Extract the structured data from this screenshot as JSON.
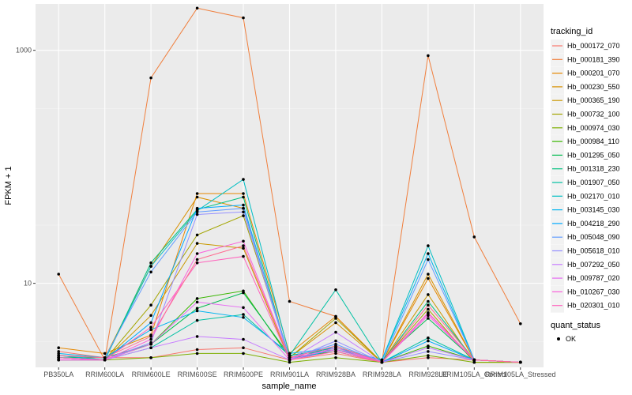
{
  "chart_data": {
    "type": "line",
    "xlabel": "sample_name",
    "ylabel": "FPKM + 1",
    "y_scale": "log10",
    "ylim": [
      1.9,
      2500
    ],
    "y_ticks": [
      10,
      1000
    ],
    "grid": true,
    "legend_position": "right",
    "categories": [
      "PB350LA",
      "RRIM600LA",
      "RRIM600LE",
      "RRIM600SE",
      "RRIM600PE",
      "RRIM901LA",
      "RRIM928BA",
      "RRIM928LA",
      "RRIM928LE",
      "RRIM105LA_Control",
      "RRIM105LA_Stressed"
    ],
    "color_legend": {
      "title": "tracking_id"
    },
    "point_legend": {
      "title": "quant_status",
      "label": "OK"
    },
    "series": [
      {
        "name": "Hb_000172_070",
        "color": "#F8766D",
        "values": [
          2.6,
          2.3,
          2.3,
          2.7,
          2.8,
          2.2,
          2.5,
          2.1,
          2.3,
          2.2,
          2.1
        ]
      },
      {
        "name": "Hb_000181_390",
        "color": "#F07F3D",
        "values": [
          12,
          2.2,
          580,
          2300,
          1900,
          7,
          5.2,
          2.1,
          900,
          25,
          4.5
        ]
      },
      {
        "name": "Hb_000201_070",
        "color": "#E58700",
        "values": [
          2.8,
          2.5,
          3.6,
          59,
          59,
          2.5,
          5.2,
          2.1,
          11,
          2.2,
          2.1
        ]
      },
      {
        "name": "Hb_000230_550",
        "color": "#D89000",
        "values": [
          2.4,
          2.3,
          14,
          55,
          44,
          2.3,
          4.6,
          2.1,
          12,
          2.2,
          2.1
        ]
      },
      {
        "name": "Hb_000365_190",
        "color": "#C99800",
        "values": [
          2.3,
          2.2,
          5.3,
          22,
          20,
          2.2,
          2.8,
          2.1,
          8,
          2.1,
          2.1
        ]
      },
      {
        "name": "Hb_000732_100",
        "color": "#A3A500",
        "values": [
          2.2,
          2.2,
          6.5,
          26,
          38,
          2.3,
          5,
          2.1,
          6,
          2.1,
          2.1
        ]
      },
      {
        "name": "Hb_000974_030",
        "color": "#7CAE00",
        "values": [
          2.2,
          2.2,
          2.3,
          2.5,
          2.5,
          2.1,
          2.3,
          2.1,
          2.4,
          2.1,
          2.1
        ]
      },
      {
        "name": "Hb_000984_110",
        "color": "#39B600",
        "values": [
          2.3,
          2.2,
          3,
          7.4,
          8.6,
          2.3,
          2.6,
          2.1,
          2.9,
          2.2,
          2.1
        ]
      },
      {
        "name": "Hb_001295_050",
        "color": "#00BB4E",
        "values": [
          2.3,
          2.3,
          3,
          6.1,
          8.3,
          2.4,
          2.8,
          2.2,
          5,
          2.2,
          2.1
        ]
      },
      {
        "name": "Hb_001318_230",
        "color": "#00BF7D",
        "values": [
          2.2,
          2.2,
          15,
          43,
          55,
          2.2,
          2.9,
          2.1,
          7,
          2.2,
          2.1
        ]
      },
      {
        "name": "Hb_001907_050",
        "color": "#00C1A3",
        "values": [
          2.4,
          2.2,
          2.8,
          4.8,
          5.4,
          2.4,
          8.8,
          2.1,
          3.4,
          2.2,
          2.1
        ]
      },
      {
        "name": "Hb_002170_010",
        "color": "#00BFC4",
        "values": [
          2.4,
          2.2,
          14,
          42,
          78,
          2.4,
          2.7,
          2.2,
          21,
          2.2,
          2.1
        ]
      },
      {
        "name": "Hb_003145_030",
        "color": "#00B4EF",
        "values": [
          2.5,
          2.3,
          4,
          5.8,
          5.1,
          2.5,
          2.8,
          2.2,
          18,
          2.2,
          2.1
        ]
      },
      {
        "name": "Hb_004218_290",
        "color": "#00A9FF",
        "values": [
          2.3,
          2.2,
          4.6,
          44,
          47,
          2.2,
          2.7,
          2.1,
          3.2,
          2.2,
          2.1
        ]
      },
      {
        "name": "Hb_005048_090",
        "color": "#619CFF",
        "values": [
          2.4,
          2.3,
          12.5,
          41,
          44,
          2.3,
          3,
          2.1,
          16,
          2.2,
          2.1
        ]
      },
      {
        "name": "Hb_005618_010",
        "color": "#9590FF",
        "values": [
          2.3,
          2.2,
          3.1,
          39,
          41,
          2.2,
          3.2,
          2.1,
          2.6,
          2.2,
          2.1
        ]
      },
      {
        "name": "Hb_007292_050",
        "color": "#C77CFF",
        "values": [
          2.2,
          2.2,
          2.8,
          3.5,
          3.3,
          2.2,
          3.8,
          2.1,
          2.8,
          2.2,
          2.1
        ]
      },
      {
        "name": "Hb_009787_020",
        "color": "#E76BF3",
        "values": [
          2.2,
          2.2,
          3,
          6.9,
          6.2,
          2.2,
          2.8,
          2.1,
          5.5,
          2.2,
          2.1
        ]
      },
      {
        "name": "Hb_010267_030",
        "color": "#FA62DB",
        "values": [
          2.2,
          2.2,
          3.3,
          18,
          23,
          2.3,
          2.7,
          2.1,
          5.3,
          2.2,
          2.1
        ]
      },
      {
        "name": "Hb_020301_010",
        "color": "#FF62BC",
        "values": [
          2.3,
          2.2,
          4.2,
          15,
          17,
          2.2,
          2.6,
          2.1,
          5.6,
          2.2,
          2.1
        ]
      },
      {
        "name": "",
        "color": "#FF6C91",
        "values": [
          2.4,
          2.3,
          3.5,
          16,
          21,
          2.3,
          2.9,
          2.1,
          6.5,
          2.2,
          2.1
        ]
      }
    ]
  }
}
